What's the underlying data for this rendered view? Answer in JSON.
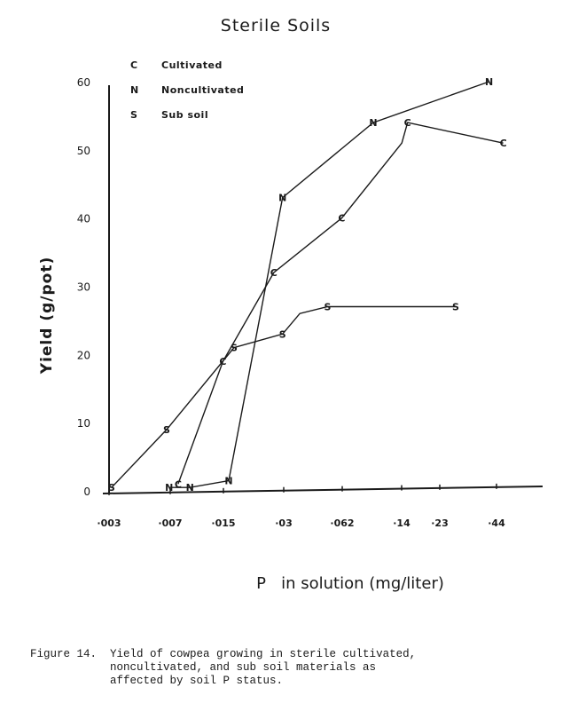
{
  "chart_data": {
    "type": "line",
    "title": "Sterile Soils",
    "ylabel": "Yield    (g/pot)",
    "xlabel": "P   in solution (mg/liter)",
    "ylim": [
      0,
      60
    ],
    "yticks": [
      "0",
      "10",
      "20",
      "30",
      "40",
      "50",
      "60"
    ],
    "x_tick_labels": [
      "·003",
      "·007",
      "·015",
      "·03",
      "·062",
      "·14",
      "·23",
      "·44"
    ],
    "x_scale": "log",
    "legend_position": "top-left",
    "legend": [
      {
        "key": "C",
        "label": "Cultivated"
      },
      {
        "key": "N",
        "label": "Noncultivated"
      },
      {
        "key": "S",
        "label": "Sub soil"
      }
    ],
    "series": [
      {
        "key": "C",
        "points": [
          {
            "x": 0.0073,
            "y": 1,
            "marker": true
          },
          {
            "x": 0.013,
            "y": 19,
            "marker": true
          },
          {
            "x": 0.025,
            "y": 32,
            "marker": true
          },
          {
            "x": 0.06,
            "y": 40,
            "marker": true
          },
          {
            "x": 0.13,
            "y": 51,
            "marker": false
          },
          {
            "x": 0.14,
            "y": 54,
            "marker": true
          },
          {
            "x": 0.48,
            "y": 51,
            "marker": true
          }
        ]
      },
      {
        "key": "N",
        "points": [
          {
            "x": 0.0065,
            "y": 0.5,
            "marker": true
          },
          {
            "x": 0.0085,
            "y": 0.5,
            "marker": true
          },
          {
            "x": 0.014,
            "y": 1.5,
            "marker": true
          },
          {
            "x": 0.028,
            "y": 43,
            "marker": true
          },
          {
            "x": 0.09,
            "y": 54,
            "marker": true
          },
          {
            "x": 0.4,
            "y": 60,
            "marker": true
          }
        ]
      },
      {
        "key": "S",
        "points": [
          {
            "x": 0.0031,
            "y": 0.5,
            "marker": true
          },
          {
            "x": 0.0063,
            "y": 9,
            "marker": true
          },
          {
            "x": 0.015,
            "y": 21,
            "marker": true
          },
          {
            "x": 0.028,
            "y": 23,
            "marker": true
          },
          {
            "x": 0.035,
            "y": 26,
            "marker": false
          },
          {
            "x": 0.05,
            "y": 27,
            "marker": true
          },
          {
            "x": 0.26,
            "y": 27,
            "marker": true
          }
        ]
      }
    ]
  },
  "caption": "Figure 14.  Yield of cowpea growing in sterile cultivated,\n            noncultivated, and sub soil materials as\n            affected by soil P status."
}
